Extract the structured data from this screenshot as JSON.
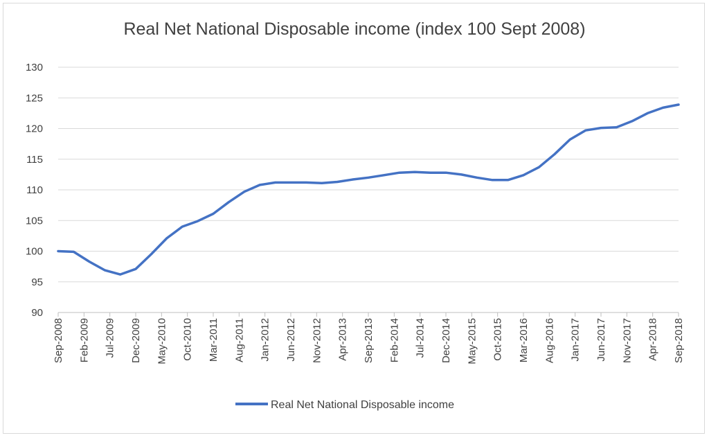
{
  "chart_data": {
    "type": "line",
    "title": "Real Net National Disposable income (index 100 Sept 2008)",
    "xlabel": "",
    "ylabel": "",
    "ylim": [
      90,
      130
    ],
    "yticks": [
      90,
      95,
      100,
      105,
      110,
      115,
      120,
      125,
      130
    ],
    "grid": true,
    "legend_position": "bottom",
    "x_tick_labels": [
      "Sep-2008",
      "Feb-2009",
      "Jul-2009",
      "Dec-2009",
      "May-2010",
      "Oct-2010",
      "Mar-2011",
      "Aug-2011",
      "Jan-2012",
      "Jun-2012",
      "Nov-2012",
      "Apr-2013",
      "Sep-2013",
      "Feb-2014",
      "Jul-2014",
      "Dec-2014",
      "May-2015",
      "Oct-2015",
      "Mar-2016",
      "Aug-2016",
      "Jan-2017",
      "Jun-2017",
      "Nov-2017",
      "Apr-2018",
      "Sep-2018"
    ],
    "x": [
      "Sep-2008",
      "Dec-2008",
      "Mar-2009",
      "Jun-2009",
      "Sep-2009",
      "Dec-2009",
      "Mar-2010",
      "Jun-2010",
      "Sep-2010",
      "Dec-2010",
      "Mar-2011",
      "Jun-2011",
      "Sep-2011",
      "Dec-2011",
      "Mar-2012",
      "Jun-2012",
      "Sep-2012",
      "Dec-2012",
      "Mar-2013",
      "Jun-2013",
      "Sep-2013",
      "Dec-2013",
      "Mar-2014",
      "Jun-2014",
      "Sep-2014",
      "Dec-2014",
      "Mar-2015",
      "Jun-2015",
      "Sep-2015",
      "Dec-2015",
      "Mar-2016",
      "Jun-2016",
      "Sep-2016",
      "Dec-2016",
      "Mar-2017",
      "Jun-2017",
      "Sep-2017",
      "Dec-2017",
      "Mar-2018",
      "Jun-2018",
      "Sep-2018"
    ],
    "series": [
      {
        "name": "Real Net National Disposable income",
        "color": "#4472c4",
        "values": [
          100.0,
          99.9,
          98.3,
          96.9,
          96.2,
          97.1,
          99.5,
          102.1,
          104.0,
          104.9,
          106.1,
          108.0,
          109.7,
          110.8,
          111.2,
          111.2,
          111.2,
          111.1,
          111.3,
          111.7,
          112.0,
          112.4,
          112.8,
          112.9,
          112.8,
          112.8,
          112.5,
          112.0,
          111.6,
          111.6,
          112.4,
          113.7,
          115.8,
          118.2,
          119.7,
          120.1,
          120.2,
          121.2,
          122.5,
          123.4,
          123.9
        ]
      }
    ]
  }
}
